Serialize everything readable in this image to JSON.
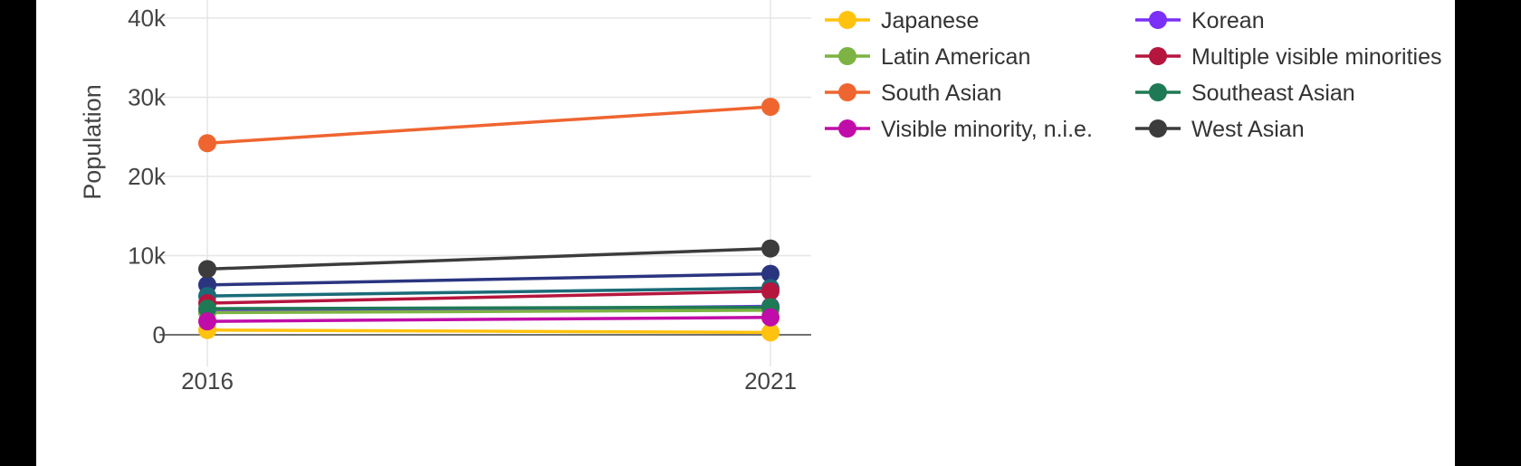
{
  "chart_data": {
    "type": "line",
    "x": [
      "2016",
      "2021"
    ],
    "ylabel": "Population",
    "ylim": [
      -4000,
      41000
    ],
    "yticks": [
      0,
      10000,
      20000,
      30000,
      40000
    ],
    "ytick_labels": [
      "0",
      "10k",
      "20k",
      "30k",
      "40k"
    ],
    "xtick_labels": [
      "2016",
      "2021"
    ],
    "grid": true,
    "legend_position": "right",
    "series": [
      {
        "name": "",
        "color": "#2a3580",
        "values": [
          6300,
          7700
        ]
      },
      {
        "name": "",
        "color": "#1b6b78",
        "values": [
          4900,
          5900
        ]
      },
      {
        "name": "",
        "color": "#7a8a3a",
        "values": [
          3000,
          3300
        ]
      },
      {
        "name": "Japanese",
        "color": "#ffc20e",
        "values": [
          600,
          300
        ]
      },
      {
        "name": "Korean",
        "color": "#7b2ff7",
        "values": [
          2900,
          3600
        ]
      },
      {
        "name": "Latin American",
        "color": "#7cb342",
        "values": [
          2800,
          3100
        ]
      },
      {
        "name": "Multiple visible minorities",
        "color": "#b5163e",
        "values": [
          4000,
          5500
        ]
      },
      {
        "name": "South Asian",
        "color": "#ef6530",
        "values": [
          24200,
          28800
        ]
      },
      {
        "name": "Southeast Asian",
        "color": "#1e7a55",
        "values": [
          3300,
          3500
        ]
      },
      {
        "name": "Visible minority, n.i.e.",
        "color": "#c00ca8",
        "values": [
          1700,
          2200
        ]
      },
      {
        "name": "West Asian",
        "color": "#3c3c3c",
        "values": [
          8300,
          10900
        ]
      }
    ]
  }
}
